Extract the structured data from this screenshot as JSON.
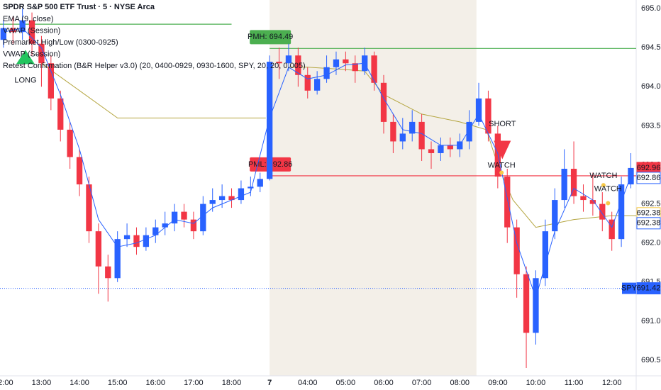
{
  "chart_data": {
    "type": "candlestick",
    "title": "SPDR S&P 500 ETF Trust · 5 · NYSE Arca",
    "legend": [
      "EMA (9, close)",
      "VWAP (Session)",
      "Premarket High/Low (0300-0925)",
      "VWAP (Session)",
      "Retest Confirmation (B&R Helper v3.0) (20, 0400-0929, 0930-1600, SPY, 20, 20, 0.005)"
    ],
    "up_color": "#2962ff",
    "down_color": "#f23645",
    "xlim": [
      -0.09,
      16.64
    ],
    "ylim": [
      690.3,
      695.11
    ],
    "xticks": [
      {
        "value": 0,
        "label": "12:00"
      },
      {
        "value": 1,
        "label": "13:00"
      },
      {
        "value": 2,
        "label": "14:00"
      },
      {
        "value": 3,
        "label": "15:00"
      },
      {
        "value": 4,
        "label": "16:00"
      },
      {
        "value": 5,
        "label": "17:00"
      },
      {
        "value": 6,
        "label": "18:00"
      },
      7,
      {
        "value": 8,
        "label": "04:00"
      },
      {
        "value": 9,
        "label": "05:00"
      },
      {
        "value": 10,
        "label": "06:00"
      },
      {
        "value": 11,
        "label": "07:00"
      },
      {
        "value": 12,
        "label": "08:00"
      },
      {
        "value": 13,
        "label": "09:00"
      },
      {
        "value": 14,
        "label": "10:00"
      },
      {
        "value": 15,
        "label": "11:00"
      },
      {
        "value": 16,
        "label": "12:00"
      }
    ],
    "yticks": [
      {
        "value": 690.5,
        "label": "690.50"
      },
      {
        "value": 691,
        "label": "691.00"
      },
      {
        "value": 691.5,
        "label": "691.50"
      },
      {
        "value": 692,
        "label": "692.00"
      },
      {
        "value": 692.5,
        "label": "692.50"
      },
      {
        "value": 693,
        "label": "693.00"
      },
      {
        "value": 693.5,
        "label": "693.50"
      },
      {
        "value": 694,
        "label": "694.00"
      },
      {
        "value": 694.5,
        "label": "694.50"
      },
      {
        "value": 695,
        "label": "695.00"
      }
    ],
    "shaded": [
      7,
      12.44
    ],
    "x": [
      0,
      0.25,
      0.5,
      0.75,
      1,
      1.25,
      1.5,
      1.75,
      2,
      2.25,
      2.5,
      2.75,
      3,
      3.25,
      3.5,
      3.75,
      4,
      4.25,
      4.5,
      4.75,
      5,
      5.25,
      5.5,
      5.75,
      6,
      6.25,
      6.5,
      6.75,
      7,
      7.25,
      7.5,
      7.75,
      8,
      8.25,
      8.5,
      8.75,
      9,
      9.25,
      9.5,
      9.75,
      10,
      10.25,
      10.5,
      10.75,
      11,
      11.25,
      11.5,
      11.75,
      12,
      12.25,
      12.5,
      12.75,
      13,
      13.25,
      13.5,
      13.75,
      14,
      14.25,
      14.5,
      14.75,
      15,
      15.25,
      15.5,
      15.75,
      16,
      16.25,
      16.5
    ],
    "open": [
      694.6,
      694.75,
      694.7,
      694.85,
      694.55,
      694.3,
      693.85,
      693.45,
      693.1,
      692.75,
      692.15,
      691.7,
      691.55,
      692.05,
      692.1,
      691.95,
      692.1,
      692.2,
      692.25,
      692.4,
      692.3,
      692.15,
      692.5,
      692.55,
      692.6,
      692.55,
      692.7,
      692.72,
      692.82,
      694.32,
      694.3,
      694.4,
      694.15,
      693.95,
      694.1,
      694.25,
      694.35,
      694.3,
      694.2,
      694.4,
      694.05,
      693.55,
      693.3,
      693.4,
      693.55,
      693.2,
      693.15,
      693.25,
      693.2,
      693.3,
      693.55,
      693.85,
      693.4,
      692.85,
      692.2,
      691.6,
      690.85,
      691.55,
      692.15,
      692.55,
      692.95,
      692.6,
      692.55,
      692.5,
      692.3,
      692.05,
      692.75
    ],
    "high": [
      694.85,
      694.9,
      695.0,
      694.95,
      694.65,
      694.4,
      693.95,
      693.55,
      693.2,
      692.85,
      692.25,
      691.85,
      692.15,
      692.25,
      692.2,
      692.2,
      692.3,
      692.4,
      692.5,
      692.5,
      692.4,
      692.6,
      692.7,
      692.75,
      692.7,
      692.8,
      692.85,
      692.9,
      694.4,
      694.5,
      694.55,
      694.5,
      694.25,
      694.2,
      694.4,
      694.45,
      694.45,
      694.4,
      694.5,
      694.45,
      694.15,
      693.65,
      693.6,
      693.7,
      693.65,
      693.3,
      693.35,
      693.35,
      693.4,
      693.7,
      694.05,
      693.95,
      693.5,
      692.95,
      692.3,
      691.7,
      691.65,
      692.3,
      692.7,
      693.2,
      693.3,
      692.75,
      692.9,
      692.65,
      692.4,
      692.85,
      693.15
    ],
    "low": [
      694.5,
      694.55,
      694.6,
      694.4,
      694.0,
      693.7,
      693.3,
      692.95,
      692.6,
      692.0,
      691.35,
      691.25,
      691.5,
      691.95,
      691.85,
      691.9,
      692.0,
      692.1,
      692.15,
      692.2,
      692.05,
      692.1,
      692.4,
      692.45,
      692.45,
      692.5,
      692.6,
      692.65,
      692.8,
      694.1,
      694.2,
      694.0,
      693.85,
      693.9,
      694.05,
      694.15,
      694.2,
      694.05,
      694.15,
      693.95,
      693.4,
      693.15,
      693.2,
      693.3,
      693.05,
      692.95,
      693.05,
      693.1,
      693.1,
      693.2,
      693.5,
      693.3,
      692.7,
      692.0,
      691.3,
      690.4,
      690.7,
      691.45,
      692.05,
      692.45,
      692.5,
      692.4,
      692.35,
      692.15,
      691.9,
      691.95,
      692.7
    ],
    "close": [
      694.75,
      694.7,
      694.85,
      694.55,
      694.3,
      693.85,
      693.45,
      693.1,
      692.75,
      692.15,
      691.7,
      691.55,
      692.05,
      692.1,
      691.95,
      692.1,
      692.2,
      692.25,
      692.4,
      692.3,
      692.15,
      692.5,
      692.55,
      692.6,
      692.55,
      692.7,
      692.72,
      692.82,
      694.32,
      694.3,
      694.4,
      694.15,
      693.95,
      694.1,
      694.25,
      694.35,
      694.3,
      694.2,
      694.4,
      694.05,
      693.55,
      693.3,
      693.4,
      693.55,
      693.2,
      693.15,
      693.25,
      693.2,
      693.3,
      693.55,
      693.85,
      693.4,
      692.85,
      692.2,
      691.6,
      690.85,
      691.55,
      692.15,
      692.55,
      692.95,
      692.6,
      692.55,
      692.5,
      692.3,
      692.05,
      692.75,
      692.96
    ],
    "ema": {
      "color": "#2962ff",
      "x": [
        0,
        0.5,
        1,
        1.5,
        2,
        2.5,
        3,
        3.5,
        4,
        4.5,
        5,
        5.5,
        6,
        6.5,
        7,
        7.5,
        8,
        8.5,
        9,
        9.5,
        10,
        10.5,
        11,
        11.5,
        12,
        12.5,
        13,
        13.5,
        14,
        14.5,
        15,
        15.5,
        16,
        16.5
      ],
      "values": [
        694.7,
        694.75,
        694.5,
        693.9,
        693.2,
        692.3,
        691.95,
        692.0,
        692.1,
        692.3,
        692.25,
        692.45,
        692.55,
        692.65,
        693.6,
        694.25,
        694.1,
        694.15,
        694.28,
        694.3,
        693.85,
        693.45,
        693.4,
        693.25,
        693.25,
        693.65,
        693.15,
        692.0,
        691.3,
        692.15,
        692.7,
        692.55,
        692.2,
        692.86
      ]
    },
    "vwap": {
      "color": "#b5a642",
      "x": [
        1,
        2,
        3,
        4,
        5,
        6,
        6.9,
        7,
        7.5,
        8,
        9,
        9.5,
        10,
        11,
        12,
        12.7,
        13,
        13.4,
        14,
        15,
        16,
        16.64
      ],
      "values": [
        694.3,
        693.95,
        693.6,
        693.6,
        693.6,
        693.6,
        693.6,
        null,
        694.25,
        694.25,
        694.22,
        694.2,
        693.9,
        693.65,
        693.55,
        693.45,
        693.0,
        692.55,
        692.2,
        692.3,
        692.35,
        692.35
      ]
    },
    "levels": [
      {
        "value": 694.8,
        "color": "#4caf50",
        "x": [
          -0.09,
          6
        ]
      },
      {
        "label": "PMH: 694.49",
        "value": 694.49,
        "color": "#4caf50",
        "x": [
          7,
          16.64
        ]
      },
      {
        "label": "PML: 692.86",
        "value": 692.86,
        "color": "#f23645",
        "x": [
          7,
          16.64
        ]
      }
    ],
    "markers": [
      {
        "kind": "up",
        "x": 0.58,
        "value": 694.38,
        "color": "#22c55e"
      },
      {
        "label": "LONG",
        "x": 0.58,
        "value": 694.08,
        "color": "#2962ff"
      },
      {
        "kind": "down",
        "x": 13.12,
        "value": 693.2,
        "color": "#f23645"
      },
      {
        "label": "SHORT",
        "x": 13.12,
        "value": 693.52,
        "color": "#2962ff"
      },
      {
        "label": "WATCH",
        "x": 13.1,
        "value": 692.99,
        "color": "#2962ff"
      },
      {
        "kind": "dot",
        "x": 13.1,
        "value": 692.9,
        "color": "#f7c948"
      },
      {
        "label": "WATCH",
        "x": 15.78,
        "value": 692.86,
        "color": "#9c27b0"
      },
      {
        "kind": "dot",
        "x": 15.78,
        "value": 692.74,
        "color": "#f7c948"
      },
      {
        "label": "WATCH",
        "x": 15.9,
        "value": 692.69,
        "color": "#2962ff"
      },
      {
        "kind": "dot",
        "x": 15.9,
        "value": 692.51,
        "color": "#f7c948"
      }
    ],
    "price_labels": [
      {
        "value": 692.96,
        "color": "#f23645",
        "filled": true
      },
      {
        "value": 692.86,
        "color": "#2962ff",
        "filled": false
      },
      {
        "value": 692.38,
        "color": "#f7c948",
        "filled": false
      },
      {
        "value": 692.38,
        "color": "#2962ff",
        "filled": false
      },
      {
        "name": "SPY",
        "value": 691.42,
        "color": "#2962ff",
        "filled": true
      }
    ]
  }
}
